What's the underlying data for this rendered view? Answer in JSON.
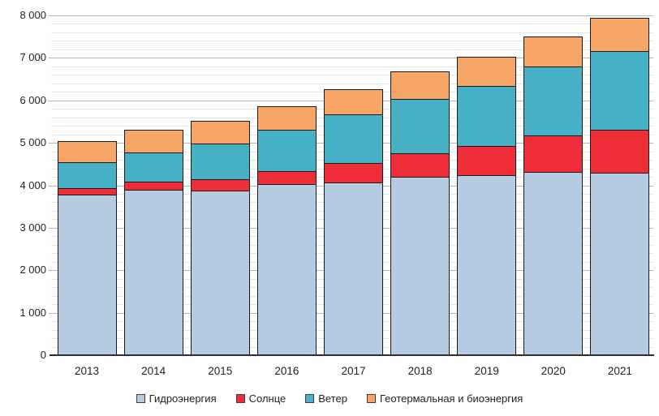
{
  "chart_data": {
    "type": "bar",
    "stacked": true,
    "title": "",
    "xlabel": "",
    "ylabel": "",
    "categories": [
      "2013",
      "2014",
      "2015",
      "2016",
      "2017",
      "2018",
      "2019",
      "2020",
      "2021"
    ],
    "series": [
      {
        "id": "hydro",
        "name": "Гидроэнергия",
        "color": "#b5cbe2",
        "values": [
          3780,
          3895,
          3875,
          4025,
          4065,
          4200,
          4235,
          4315,
          4295
        ]
      },
      {
        "id": "solar",
        "name": "Солнце",
        "color": "#ee2d38",
        "values": [
          150,
          190,
          265,
          305,
          460,
          550,
          690,
          855,
          1010
        ]
      },
      {
        "id": "wind",
        "name": "Ветер",
        "color": "#46b1c5",
        "values": [
          610,
          685,
          840,
          975,
          1145,
          1280,
          1410,
          1625,
          1850
        ]
      },
      {
        "id": "geo-bio",
        "name": "Геотермальная и биоэнергия",
        "color": "#f6a566",
        "values": [
          500,
          535,
          535,
          555,
          590,
          650,
          690,
          705,
          785
        ]
      }
    ],
    "totals": [
      5040,
      5305,
      5515,
      5860,
      6260,
      6680,
      7025,
      7500,
      7940
    ],
    "ylim": [
      0,
      8000
    ],
    "y_major_step": 1000,
    "y_minor_step": 200,
    "ytick_labels": [
      "0",
      "1 000",
      "2 000",
      "3 000",
      "4 000",
      "5 000",
      "6 000",
      "7 000",
      "8 000"
    ],
    "grid": true,
    "legend_position": "bottom",
    "colors": {
      "bar_border": "#1a1a1a",
      "axis_line": "#2e2e2e",
      "major_grid": "#b3b3b3",
      "minor_grid": "#e5e5e5",
      "text": "#1f1f1f",
      "background": "#ffffff"
    }
  }
}
